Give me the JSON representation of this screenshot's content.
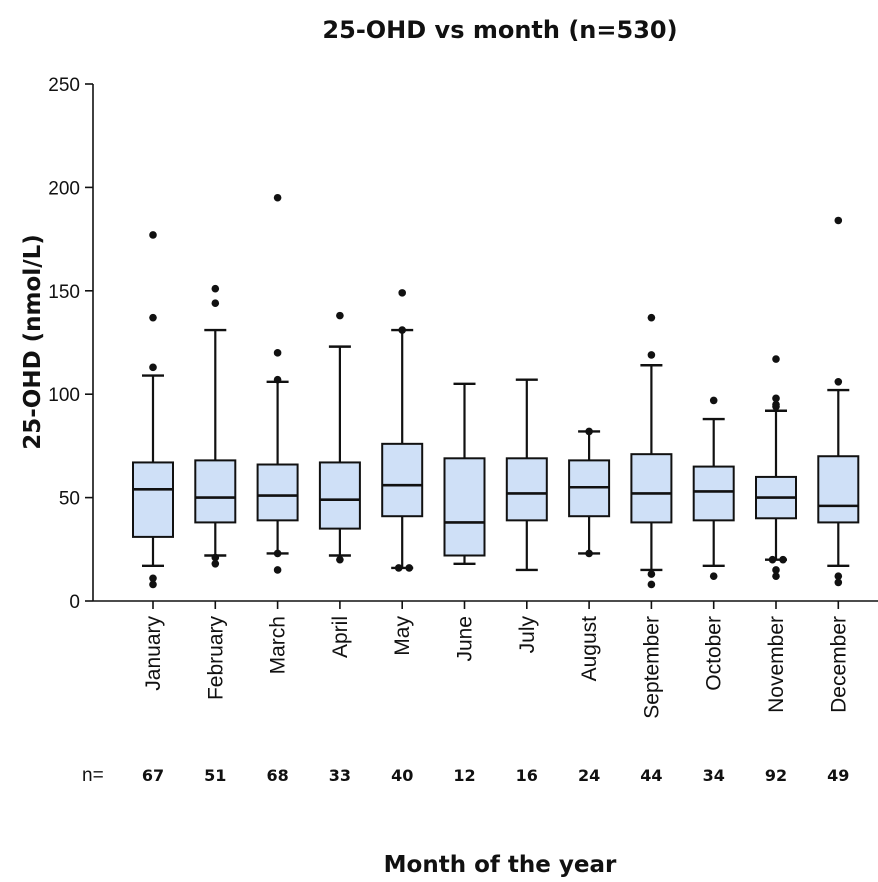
{
  "chart_data": {
    "type": "box",
    "title": "25-OHD vs month (n=530)",
    "xlabel": "Month of the year",
    "ylabel": "25-OHD (nmol/L)",
    "ylim": [
      0,
      250
    ],
    "yticks": [
      "0",
      "50",
      "100",
      "150",
      "200",
      "250"
    ],
    "n_prefix": "n=",
    "grid": false,
    "categories": [
      "January",
      "February",
      "March",
      "April",
      "May",
      "June",
      "July",
      "August",
      "September",
      "October",
      "November",
      "December"
    ],
    "n": [
      "67",
      "51",
      "68",
      "33",
      "40",
      "12",
      "16",
      "24",
      "44",
      "34",
      "92",
      "49"
    ],
    "boxes": [
      {
        "whisker_low": 17,
        "q1": 31,
        "median": 54,
        "q3": 67,
        "whisker_high": 109,
        "outliers": [
          8,
          11,
          113,
          137,
          177
        ]
      },
      {
        "whisker_low": 22,
        "q1": 38,
        "median": 50,
        "q3": 68,
        "whisker_high": 131,
        "outliers": [
          18,
          21,
          144,
          151
        ]
      },
      {
        "whisker_low": 23,
        "q1": 39,
        "median": 51,
        "q3": 66,
        "whisker_high": 106,
        "outliers": [
          15,
          23,
          107,
          120,
          195
        ]
      },
      {
        "whisker_low": 22,
        "q1": 35,
        "median": 49,
        "q3": 67,
        "whisker_high": 123,
        "outliers": [
          20,
          138
        ]
      },
      {
        "whisker_low": 16,
        "q1": 41,
        "median": 56,
        "q3": 76,
        "whisker_high": 131,
        "outliers": [
          16,
          16,
          131,
          149
        ]
      },
      {
        "whisker_low": 18,
        "q1": 22,
        "median": 38,
        "q3": 69,
        "whisker_high": 105,
        "outliers": []
      },
      {
        "whisker_low": 15,
        "q1": 39,
        "median": 52,
        "q3": 69,
        "whisker_high": 107,
        "outliers": []
      },
      {
        "whisker_low": 23,
        "q1": 41,
        "median": 55,
        "q3": 68,
        "whisker_high": 82,
        "outliers": [
          23,
          82
        ]
      },
      {
        "whisker_low": 15,
        "q1": 38,
        "median": 52,
        "q3": 71,
        "whisker_high": 114,
        "outliers": [
          8,
          13,
          119,
          137
        ]
      },
      {
        "whisker_low": 17,
        "q1": 39,
        "median": 53,
        "q3": 65,
        "whisker_high": 88,
        "outliers": [
          12,
          97
        ]
      },
      {
        "whisker_low": 20,
        "q1": 40,
        "median": 50,
        "q3": 60,
        "whisker_high": 92,
        "outliers": [
          12,
          15,
          20,
          20,
          94,
          95,
          98,
          117
        ]
      },
      {
        "whisker_low": 17,
        "q1": 38,
        "median": 46,
        "q3": 70,
        "whisker_high": 102,
        "outliers": [
          9,
          12,
          106,
          184
        ]
      }
    ],
    "colors": {
      "box_fill": "#cfe0f7",
      "line": "#111111",
      "outlier": "#111111"
    }
  }
}
